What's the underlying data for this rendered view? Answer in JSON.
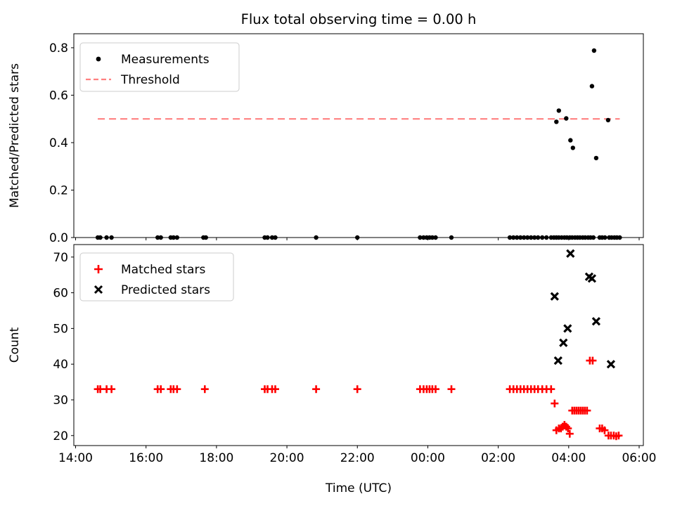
{
  "chart_data": [
    {
      "type": "scatter",
      "title": "Flux total observing time = 0.00 h",
      "ylabel": "Matched/Predicted stars",
      "xlabel": "",
      "xlim": [
        13.95,
        30.12
      ],
      "ylim": [
        0,
        0.859
      ],
      "yticks": [
        0.0,
        0.2,
        0.4,
        0.6,
        0.8
      ],
      "ytick_labels": [
        "0.0",
        "0.2",
        "0.4",
        "0.6",
        "0.8"
      ],
      "xticks": [
        14,
        16,
        18,
        20,
        22,
        24,
        26,
        28,
        30
      ],
      "xtick_labels": [],
      "legend_position": "upper left",
      "grid": false,
      "threshold": {
        "label": "Threshold",
        "y": 0.5,
        "x_start": 14.63,
        "x_end": 29.45,
        "color": "#ff8080",
        "style": "dashed"
      },
      "series": [
        {
          "name": "Measurements",
          "marker": "dot",
          "color": "#000000",
          "points": [
            [
              14.63,
              0
            ],
            [
              14.7,
              0
            ],
            [
              14.88,
              0
            ],
            [
              15.02,
              0
            ],
            [
              16.33,
              0
            ],
            [
              16.42,
              0
            ],
            [
              16.7,
              0
            ],
            [
              16.78,
              0
            ],
            [
              16.88,
              0
            ],
            [
              17.63,
              0
            ],
            [
              17.7,
              0
            ],
            [
              19.37,
              0
            ],
            [
              19.45,
              0
            ],
            [
              19.58,
              0
            ],
            [
              19.67,
              0
            ],
            [
              20.83,
              0
            ],
            [
              22.0,
              0
            ],
            [
              23.78,
              0
            ],
            [
              23.88,
              0
            ],
            [
              23.97,
              0
            ],
            [
              24.05,
              0
            ],
            [
              24.13,
              0
            ],
            [
              24.22,
              0
            ],
            [
              24.67,
              0
            ],
            [
              26.33,
              0
            ],
            [
              26.43,
              0
            ],
            [
              26.53,
              0
            ],
            [
              26.63,
              0
            ],
            [
              26.73,
              0
            ],
            [
              26.83,
              0
            ],
            [
              26.93,
              0
            ],
            [
              27.03,
              0
            ],
            [
              27.13,
              0
            ],
            [
              27.25,
              0
            ],
            [
              27.37,
              0
            ],
            [
              27.5,
              0
            ],
            [
              27.58,
              0
            ],
            [
              27.65,
              0
            ],
            [
              27.72,
              0
            ],
            [
              27.8,
              0
            ],
            [
              27.88,
              0
            ],
            [
              27.95,
              0
            ],
            [
              28.03,
              0
            ],
            [
              28.1,
              0
            ],
            [
              28.18,
              0
            ],
            [
              28.25,
              0
            ],
            [
              28.32,
              0
            ],
            [
              28.4,
              0
            ],
            [
              28.47,
              0
            ],
            [
              28.55,
              0
            ],
            [
              28.62,
              0
            ],
            [
              28.7,
              0
            ],
            [
              28.88,
              0
            ],
            [
              28.95,
              0
            ],
            [
              29.03,
              0
            ],
            [
              29.15,
              0
            ],
            [
              29.22,
              0
            ],
            [
              29.3,
              0
            ],
            [
              29.37,
              0
            ],
            [
              29.45,
              0
            ],
            [
              27.65,
              0.488
            ],
            [
              27.72,
              0.535
            ],
            [
              27.93,
              0.502
            ],
            [
              28.05,
              0.41
            ],
            [
              28.12,
              0.378
            ],
            [
              28.66,
              0.638
            ],
            [
              28.72,
              0.788
            ],
            [
              28.78,
              0.335
            ],
            [
              29.12,
              0.495
            ]
          ]
        }
      ]
    },
    {
      "type": "scatter",
      "title": "",
      "ylabel": "Count",
      "xlabel": "Time (UTC)",
      "xlim": [
        13.95,
        30.12
      ],
      "ylim": [
        17.2,
        73.5
      ],
      "yticks": [
        20,
        30,
        40,
        50,
        60,
        70
      ],
      "ytick_labels": [
        "20",
        "30",
        "40",
        "50",
        "60",
        "70"
      ],
      "xticks": [
        14,
        16,
        18,
        20,
        22,
        24,
        26,
        28,
        30
      ],
      "xtick_labels": [
        "14:00",
        "16:00",
        "18:00",
        "20:00",
        "22:00",
        "00:00",
        "02:00",
        "04:00",
        "06:00"
      ],
      "legend_position": "upper left",
      "grid": false,
      "series": [
        {
          "name": "Matched stars",
          "marker": "plus",
          "color": "#ff0000",
          "points": [
            [
              14.63,
              33
            ],
            [
              14.7,
              33
            ],
            [
              14.88,
              33
            ],
            [
              15.02,
              33
            ],
            [
              16.33,
              33
            ],
            [
              16.42,
              33
            ],
            [
              16.7,
              33
            ],
            [
              16.78,
              33
            ],
            [
              16.88,
              33
            ],
            [
              17.67,
              33
            ],
            [
              19.37,
              33
            ],
            [
              19.45,
              33
            ],
            [
              19.58,
              33
            ],
            [
              19.67,
              33
            ],
            [
              20.83,
              33
            ],
            [
              22.0,
              33
            ],
            [
              23.78,
              33
            ],
            [
              23.88,
              33
            ],
            [
              23.97,
              33
            ],
            [
              24.05,
              33
            ],
            [
              24.13,
              33
            ],
            [
              24.22,
              33
            ],
            [
              24.67,
              33
            ],
            [
              26.33,
              33
            ],
            [
              26.43,
              33
            ],
            [
              26.53,
              33
            ],
            [
              26.63,
              33
            ],
            [
              26.73,
              33
            ],
            [
              26.83,
              33
            ],
            [
              26.93,
              33
            ],
            [
              27.03,
              33
            ],
            [
              27.13,
              33
            ],
            [
              27.25,
              33
            ],
            [
              27.37,
              33
            ],
            [
              27.5,
              33
            ],
            [
              27.6,
              29
            ],
            [
              27.65,
              21.5
            ],
            [
              27.72,
              22
            ],
            [
              27.78,
              22
            ],
            [
              27.83,
              22.5
            ],
            [
              27.88,
              23
            ],
            [
              27.93,
              22.5
            ],
            [
              27.98,
              22
            ],
            [
              28.03,
              20.5
            ],
            [
              28.1,
              27
            ],
            [
              28.16,
              27
            ],
            [
              28.22,
              27
            ],
            [
              28.28,
              27
            ],
            [
              28.34,
              27
            ],
            [
              28.4,
              27
            ],
            [
              28.46,
              27
            ],
            [
              28.52,
              27
            ],
            [
              28.6,
              41
            ],
            [
              28.68,
              41
            ],
            [
              28.88,
              22
            ],
            [
              28.95,
              22
            ],
            [
              29.02,
              21.5
            ],
            [
              29.13,
              20
            ],
            [
              29.2,
              20
            ],
            [
              29.28,
              20
            ],
            [
              29.35,
              19.8
            ],
            [
              29.42,
              20
            ]
          ]
        },
        {
          "name": "Predicted stars",
          "marker": "x",
          "color": "#000000",
          "points": [
            [
              27.6,
              59
            ],
            [
              27.7,
              41
            ],
            [
              27.85,
              46
            ],
            [
              27.97,
              50
            ],
            [
              28.05,
              71
            ],
            [
              28.58,
              64.5
            ],
            [
              28.66,
              64
            ],
            [
              28.78,
              52
            ],
            [
              29.2,
              40
            ]
          ]
        }
      ]
    }
  ]
}
